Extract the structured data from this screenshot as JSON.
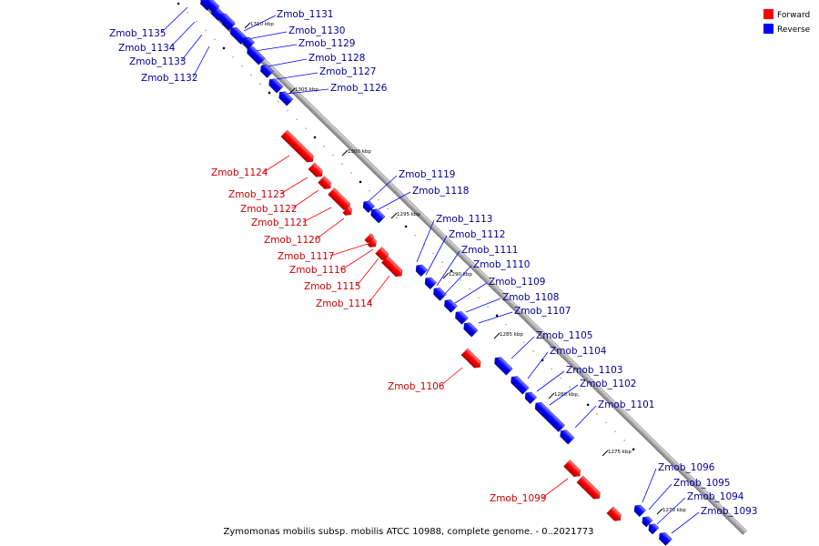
{
  "caption": "Zymomonas mobilis subsp. mobilis ATCC 10988, complete genome. - 0..2021773",
  "colors": {
    "forward": "#ff0000",
    "reverse": "#0000ff",
    "backbone": "#b0b0b0",
    "forward_text": "#cc0000",
    "reverse_text": "#000099"
  },
  "legend": [
    {
      "label": "Forward",
      "strand": "forward"
    },
    {
      "label": "Reverse",
      "strand": "reverse"
    }
  ],
  "ticks": [
    "1310 kbp",
    "1305 kbp",
    "1300 kbp",
    "1295 kbp",
    "1290 kbp",
    "1285 kbp",
    "1280 kbp",
    "1275 kbp",
    "1270 kbp"
  ],
  "genes": [
    {
      "name": "Zmob_1135",
      "strand": "reverse"
    },
    {
      "name": "Zmob_1134",
      "strand": "reverse"
    },
    {
      "name": "Zmob_1133",
      "strand": "reverse"
    },
    {
      "name": "Zmob_1132",
      "strand": "reverse"
    },
    {
      "name": "Zmob_1131",
      "strand": "reverse"
    },
    {
      "name": "Zmob_1130",
      "strand": "reverse"
    },
    {
      "name": "Zmob_1129",
      "strand": "reverse"
    },
    {
      "name": "Zmob_1128",
      "strand": "reverse"
    },
    {
      "name": "Zmob_1127",
      "strand": "reverse"
    },
    {
      "name": "Zmob_1126",
      "strand": "reverse"
    },
    {
      "name": "Zmob_1124",
      "strand": "forward"
    },
    {
      "name": "Zmob_1123",
      "strand": "forward"
    },
    {
      "name": "Zmob_1122",
      "strand": "forward"
    },
    {
      "name": "Zmob_1121",
      "strand": "forward"
    },
    {
      "name": "Zmob_1120",
      "strand": "forward"
    },
    {
      "name": "Zmob_1119",
      "strand": "reverse"
    },
    {
      "name": "Zmob_1118",
      "strand": "reverse"
    },
    {
      "name": "Zmob_1117",
      "strand": "forward"
    },
    {
      "name": "Zmob_1116",
      "strand": "forward"
    },
    {
      "name": "Zmob_1115",
      "strand": "forward"
    },
    {
      "name": "Zmob_1114",
      "strand": "forward"
    },
    {
      "name": "Zmob_1113",
      "strand": "reverse"
    },
    {
      "name": "Zmob_1112",
      "strand": "reverse"
    },
    {
      "name": "Zmob_1111",
      "strand": "reverse"
    },
    {
      "name": "Zmob_1110",
      "strand": "reverse"
    },
    {
      "name": "Zmob_1109",
      "strand": "reverse"
    },
    {
      "name": "Zmob_1108",
      "strand": "reverse"
    },
    {
      "name": "Zmob_1107",
      "strand": "reverse"
    },
    {
      "name": "Zmob_1106",
      "strand": "forward"
    },
    {
      "name": "Zmob_1105",
      "strand": "reverse"
    },
    {
      "name": "Zmob_1104",
      "strand": "reverse"
    },
    {
      "name": "Zmob_1103",
      "strand": "reverse"
    },
    {
      "name": "Zmob_1102",
      "strand": "reverse"
    },
    {
      "name": "Zmob_1101",
      "strand": "reverse"
    },
    {
      "name": "Zmob_1099",
      "strand": "forward"
    },
    {
      "name": "Zmob_1096",
      "strand": "reverse"
    },
    {
      "name": "Zmob_1095",
      "strand": "reverse"
    },
    {
      "name": "Zmob_1094",
      "strand": "reverse"
    },
    {
      "name": "Zmob_1093",
      "strand": "reverse"
    }
  ]
}
